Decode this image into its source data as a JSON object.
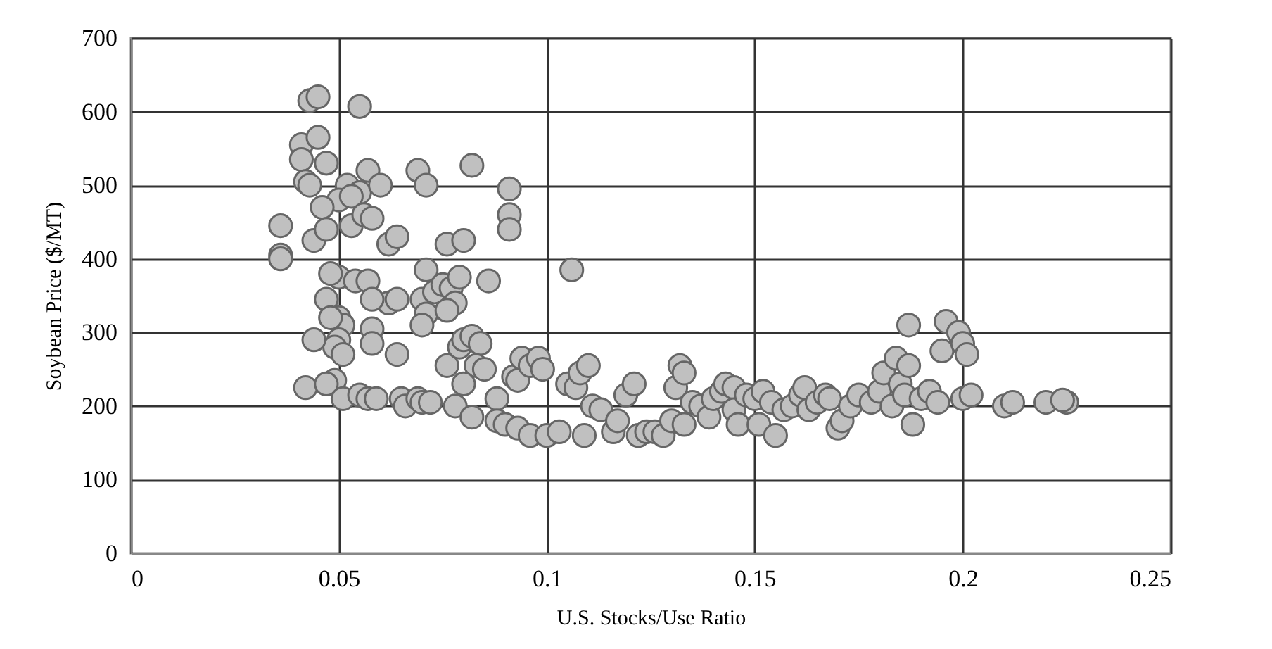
{
  "chart_data": {
    "type": "scatter",
    "xlabel": "U.S. Stocks/Use Ratio",
    "ylabel": "Soybean Price ($/MT)",
    "xlim": [
      0,
      0.25
    ],
    "xticks": [
      0,
      0.05,
      0.1,
      0.15,
      0.2,
      0.25
    ],
    "ylim": [
      0,
      700
    ],
    "yticks": [
      0,
      100,
      200,
      300,
      400,
      500,
      600,
      700
    ],
    "grid": true,
    "marker": "circle",
    "series": [
      {
        "color": "#c0c0c0",
        "x": [
          0.043,
          0.045,
          0.055,
          0.041,
          0.045,
          0.041,
          0.047,
          0.042,
          0.043,
          0.057,
          0.052,
          0.055,
          0.05,
          0.053,
          0.06,
          0.069,
          0.071,
          0.082,
          0.091,
          0.046,
          0.044,
          0.047,
          0.053,
          0.056,
          0.058,
          0.062,
          0.064,
          0.036,
          0.036,
          0.036,
          0.091,
          0.091,
          0.076,
          0.08,
          0.05,
          0.048,
          0.054,
          0.057,
          0.05,
          0.051,
          0.047,
          0.048,
          0.05,
          0.049,
          0.051,
          0.049,
          0.044,
          0.042,
          0.047,
          0.051,
          0.055,
          0.057,
          0.059,
          0.062,
          0.064,
          0.058,
          0.058,
          0.058,
          0.064,
          0.065,
          0.066,
          0.069,
          0.07,
          0.072,
          0.07,
          0.071,
          0.07,
          0.071,
          0.073,
          0.075,
          0.077,
          0.078,
          0.079,
          0.076,
          0.076,
          0.079,
          0.08,
          0.082,
          0.084,
          0.086,
          0.083,
          0.085,
          0.08,
          0.078,
          0.082,
          0.088,
          0.088,
          0.09,
          0.092,
          0.093,
          0.094,
          0.096,
          0.098,
          0.099,
          0.093,
          0.096,
          0.1,
          0.103,
          0.106,
          0.105,
          0.107,
          0.108,
          0.11,
          0.109,
          0.111,
          0.113,
          0.116,
          0.117,
          0.119,
          0.121,
          0.122,
          0.124,
          0.126,
          0.128,
          0.13,
          0.131,
          0.132,
          0.133,
          0.133,
          0.135,
          0.137,
          0.139,
          0.14,
          0.142,
          0.143,
          0.145,
          0.145,
          0.146,
          0.148,
          0.15,
          0.151,
          0.152,
          0.154,
          0.155,
          0.157,
          0.159,
          0.161,
          0.162,
          0.163,
          0.165,
          0.167,
          0.168,
          0.17,
          0.171,
          0.173,
          0.175,
          0.178,
          0.18,
          0.181,
          0.183,
          0.184,
          0.185,
          0.186,
          0.187,
          0.187,
          0.188,
          0.19,
          0.192,
          0.194,
          0.195,
          0.196,
          0.199,
          0.2,
          0.201,
          0.2,
          0.202,
          0.21,
          0.212,
          0.22,
          0.225,
          0.224
        ],
        "values": [
          615,
          620,
          607,
          555,
          565,
          535,
          530,
          505,
          500,
          520,
          500,
          490,
          480,
          485,
          500,
          520,
          500,
          527,
          495,
          470,
          425,
          440,
          445,
          460,
          455,
          420,
          430,
          445,
          405,
          400,
          460,
          440,
          420,
          425,
          375,
          380,
          370,
          370,
          320,
          310,
          345,
          320,
          290,
          280,
          270,
          235,
          290,
          225,
          230,
          210,
          215,
          210,
          210,
          340,
          345,
          345,
          305,
          285,
          270,
          210,
          200,
          210,
          205,
          205,
          345,
          325,
          310,
          385,
          355,
          365,
          360,
          340,
          375,
          330,
          255,
          280,
          290,
          295,
          285,
          370,
          255,
          250,
          230,
          200,
          185,
          210,
          180,
          175,
          240,
          235,
          265,
          255,
          265,
          250,
          170,
          160,
          160,
          165,
          385,
          230,
          225,
          245,
          255,
          160,
          200,
          195,
          165,
          180,
          215,
          230,
          160,
          165,
          165,
          160,
          180,
          225,
          255,
          245,
          175,
          205,
          200,
          185,
          210,
          220,
          230,
          225,
          195,
          175,
          215,
          210,
          175,
          220,
          205,
          160,
          195,
          200,
          215,
          225,
          195,
          205,
          215,
          210,
          170,
          180,
          200,
          215,
          205,
          220,
          245,
          200,
          265,
          230,
          215,
          310,
          255,
          175,
          210,
          220,
          205,
          275,
          315,
          300,
          285,
          270,
          210,
          215,
          200,
          205,
          205,
          205,
          208
        ]
      }
    ]
  }
}
